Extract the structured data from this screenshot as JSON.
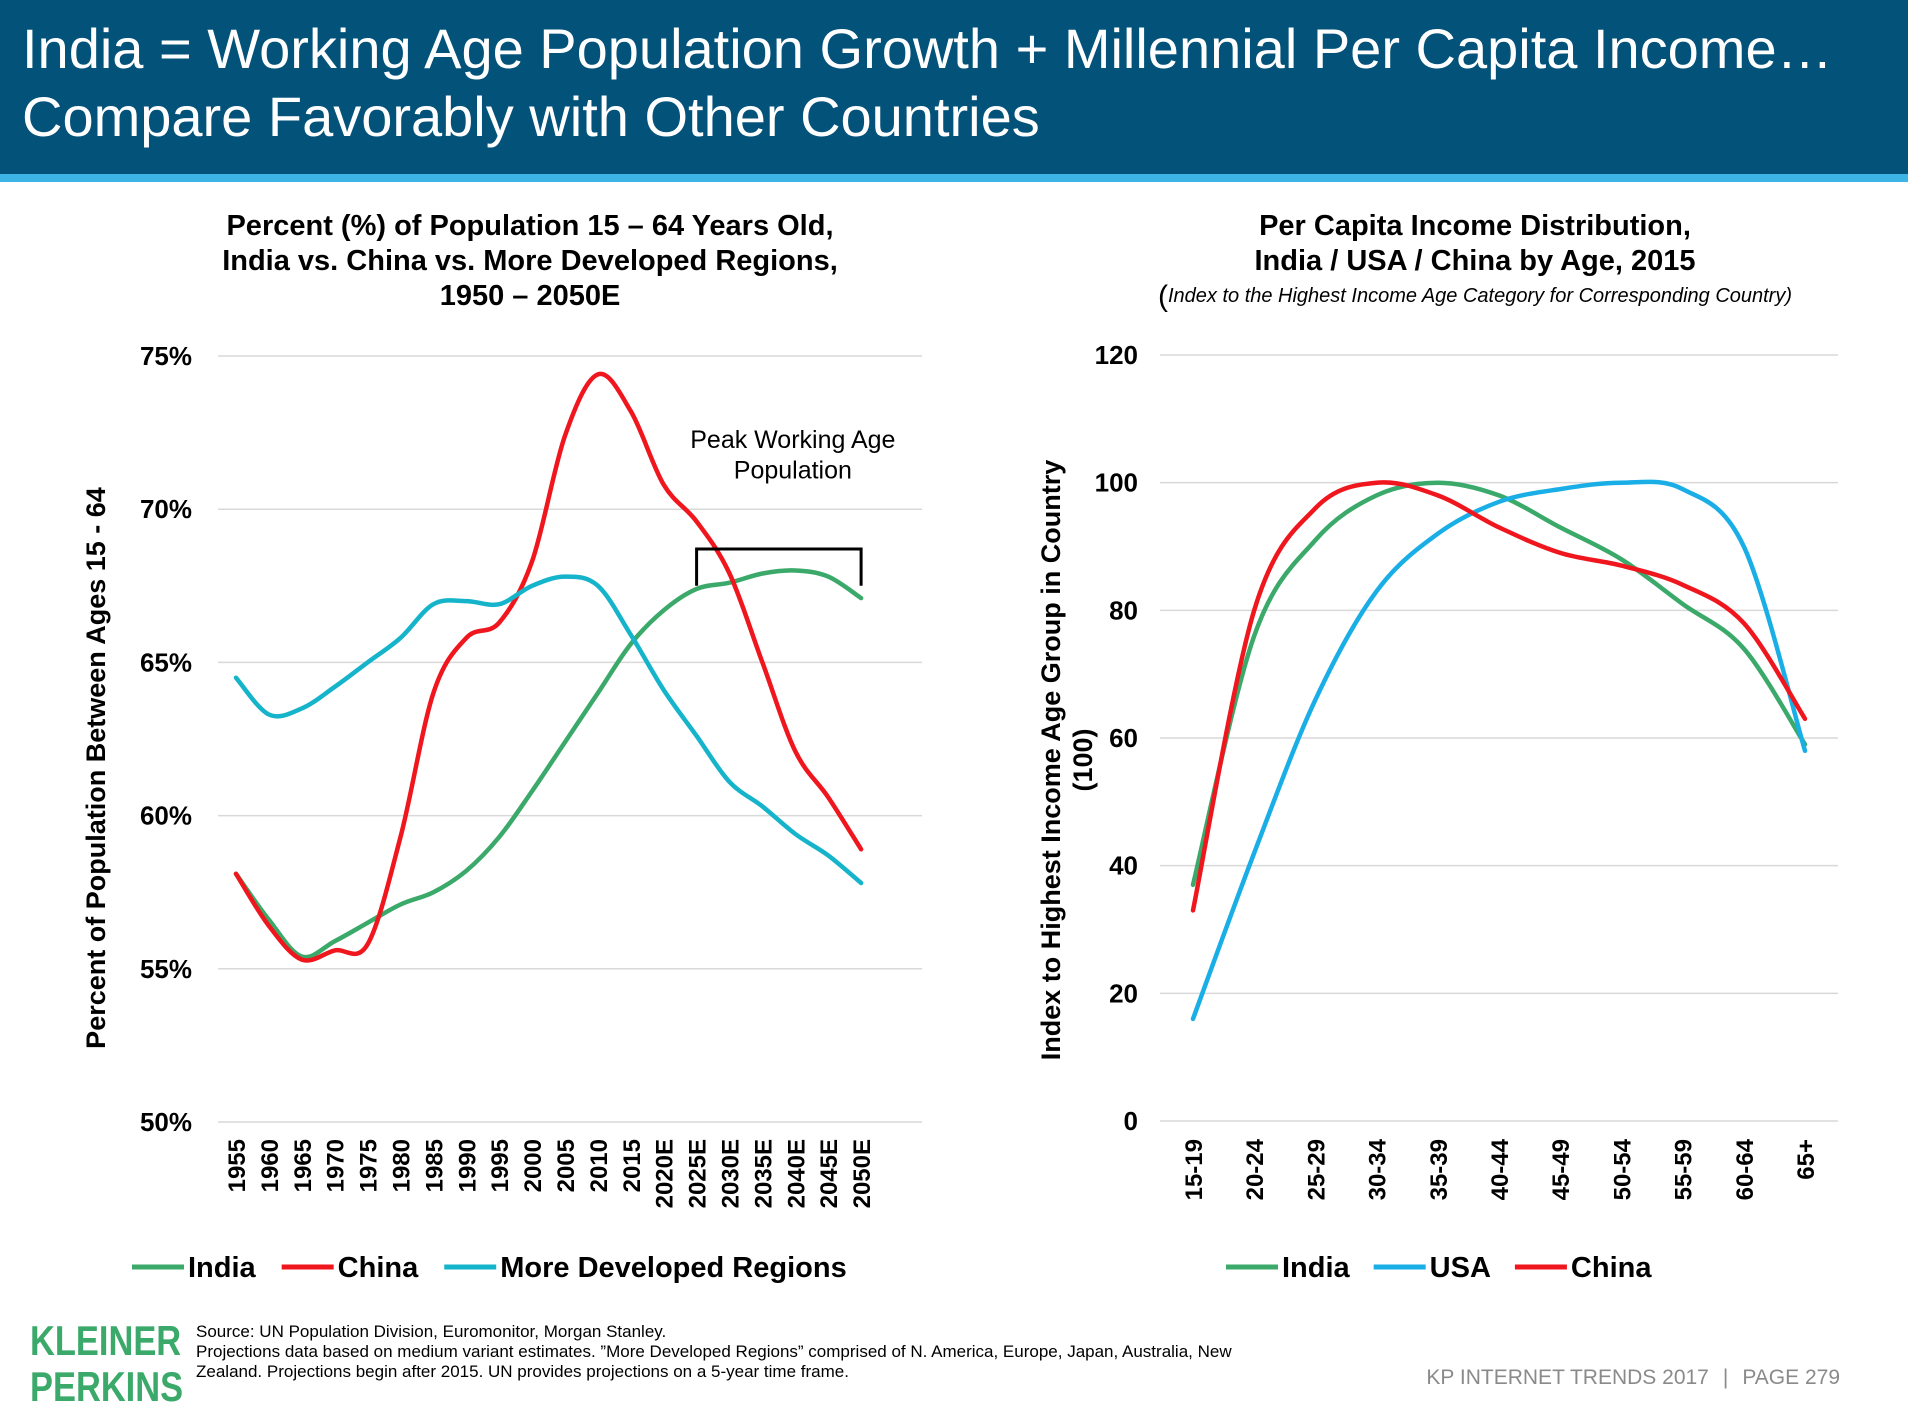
{
  "header": {
    "title_line1": "India = Working Age Population Growth + Millennial Per Capita Income…",
    "title_line2": "Compare Favorably with Other Countries"
  },
  "colors": {
    "header_bg": "#02527a",
    "header_rule": "#3cb4e5",
    "india": "#3aa96a",
    "china": "#f0161e",
    "developed": "#15b4cb",
    "usa": "#1aaee6",
    "logo": "#3aa96a"
  },
  "left_chart": {
    "title_lines": [
      "Percent (%) of Population 15 – 64 Years Old,",
      "India vs. China vs. More Developed Regions,",
      "1950 – 2050E"
    ],
    "ylabel": "Percent of Population Between Ages 15 - 64",
    "yticks": [
      "50%",
      "55%",
      "60%",
      "65%",
      "70%",
      "75%"
    ],
    "annotation_lines": [
      "Peak Working Age",
      "Population"
    ]
  },
  "right_chart": {
    "title_lines": [
      "Per Capita Income Distribution,",
      "India / USA / China by Age, 2015"
    ],
    "subtitle_paren": "(",
    "subtitle": "Index to the  Highest Income Age Category for Corresponding Country)",
    "ylabel_lines": [
      "Index to Highest Income Age Group in Country",
      "(100)"
    ],
    "yticks": [
      "0",
      "20",
      "40",
      "60",
      "80",
      "100",
      "120"
    ]
  },
  "chart_data": [
    {
      "type": "line",
      "title": "Percent (%) of Population 15 – 64 Years Old, India vs. China vs. More Developed Regions, 1950 – 2050E",
      "xlabel": "",
      "ylabel": "Percent of Population Between Ages 15 - 64",
      "ylim": [
        50,
        75
      ],
      "grid": true,
      "legend": "bottom",
      "categories": [
        "1955",
        "1960",
        "1965",
        "1970",
        "1975",
        "1980",
        "1985",
        "1990",
        "1995",
        "2000",
        "2005",
        "2010",
        "2015",
        "2020E",
        "2025E",
        "2030E",
        "2035E",
        "2040E",
        "2045E",
        "2050E"
      ],
      "series": [
        {
          "name": "India",
          "color": "#3aa96a",
          "values": [
            58.1,
            56.6,
            55.4,
            55.9,
            56.5,
            57.1,
            57.5,
            58.2,
            59.3,
            60.8,
            62.4,
            64.0,
            65.6,
            66.7,
            67.4,
            67.6,
            67.9,
            68.0,
            67.8,
            67.1
          ]
        },
        {
          "name": "China",
          "color": "#f0161e",
          "values": [
            58.1,
            56.4,
            55.3,
            55.6,
            55.8,
            59.3,
            64.0,
            65.8,
            66.3,
            68.3,
            72.4,
            74.4,
            73.2,
            70.8,
            69.6,
            67.9,
            65.0,
            62.1,
            60.6,
            58.9
          ]
        },
        {
          "name": "More Developed Regions",
          "color": "#15b4cb",
          "values": [
            64.5,
            63.3,
            63.5,
            64.2,
            65.0,
            65.8,
            66.9,
            67.0,
            66.9,
            67.5,
            67.8,
            67.5,
            65.9,
            64.1,
            62.6,
            61.1,
            60.3,
            59.4,
            58.7,
            57.8
          ]
        }
      ],
      "annotations": [
        {
          "text": "Peak Working Age Population",
          "range": [
            "2025E",
            "2050E"
          ]
        }
      ]
    },
    {
      "type": "line",
      "title": "Per Capita Income Distribution, India / USA / China by Age, 2015",
      "subtitle": "Index to the  Highest Income Age Category for Corresponding Country",
      "xlabel": "",
      "ylabel": "Index to Highest Income Age Group in Country (100)",
      "ylim": [
        0,
        120
      ],
      "grid": true,
      "legend": "bottom",
      "categories": [
        "15-19",
        "20-24",
        "25-29",
        "30-34",
        "35-39",
        "40-44",
        "45-49",
        "50-54",
        "55-59",
        "60-64",
        "65+"
      ],
      "series": [
        {
          "name": "India",
          "color": "#3aa96a",
          "values": [
            37,
            76,
            91,
            98,
            100,
            98,
            93,
            88,
            81,
            74,
            59
          ]
        },
        {
          "name": "USA",
          "color": "#1aaee6",
          "values": [
            16,
            42,
            66,
            83,
            92,
            97,
            99,
            100,
            99,
            90,
            58
          ]
        },
        {
          "name": "China",
          "color": "#f0161e",
          "values": [
            33,
            80,
            96,
            100,
            98,
            93,
            89,
            87,
            84,
            78,
            63
          ]
        }
      ]
    }
  ],
  "footer": {
    "logo_line1": "KLEINER",
    "logo_line2": "PERKINS",
    "source_lines": [
      "Source: UN Population Division, Euromonitor, Morgan Stanley.",
      "Projections data based on medium variant estimates. ”More Developed Regions” comprised of N. America, Europe, Japan, Australia, New",
      "Zealand. Projections begin after 2015. UN provides projections on a 5-year time frame."
    ],
    "report": "KP INTERNET TRENDS 2017",
    "separator": "|",
    "page": "PAGE 279"
  }
}
